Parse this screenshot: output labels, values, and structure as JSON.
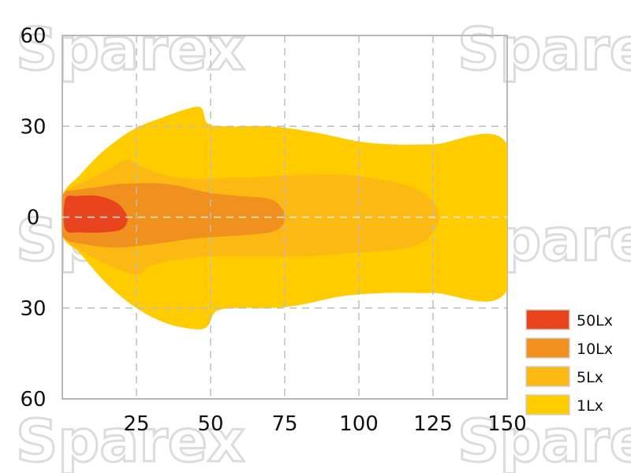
{
  "watermark": "Sparex",
  "chart_data": {
    "type": "area",
    "title": "",
    "xlabel": "",
    "ylabel": "",
    "xlim": [
      0,
      150
    ],
    "ylim": [
      -60,
      60
    ],
    "x_ticks": [
      25,
      50,
      75,
      100,
      125,
      150
    ],
    "y_ticks": [
      {
        "value": 60,
        "label": "60"
      },
      {
        "value": 30,
        "label": "30"
      },
      {
        "value": 0,
        "label": "0"
      },
      {
        "value": -30,
        "label": "30"
      },
      {
        "value": -60,
        "label": "60"
      }
    ],
    "grid": true,
    "legend_position": "bottom-right",
    "series": [
      {
        "name": "1Lx",
        "color": "#ffcc00",
        "points": [
          [
            0,
            7
          ],
          [
            6,
            14
          ],
          [
            14,
            22
          ],
          [
            24,
            29
          ],
          [
            34,
            33
          ],
          [
            43,
            36
          ],
          [
            47,
            36
          ],
          [
            49,
            31
          ],
          [
            55,
            30
          ],
          [
            70,
            30
          ],
          [
            85,
            28
          ],
          [
            100,
            25
          ],
          [
            112,
            24
          ],
          [
            125,
            24
          ],
          [
            150,
            24
          ],
          [
            150,
            -24
          ],
          [
            125,
            -25
          ],
          [
            110,
            -25
          ],
          [
            95,
            -26
          ],
          [
            80,
            -29
          ],
          [
            70,
            -30
          ],
          [
            60,
            -30
          ],
          [
            52,
            -31
          ],
          [
            49,
            -36
          ],
          [
            45,
            -37
          ],
          [
            35,
            -35
          ],
          [
            25,
            -30
          ],
          [
            15,
            -22
          ],
          [
            6,
            -12
          ],
          [
            0,
            -6
          ]
        ]
      },
      {
        "name": "5Lx",
        "color": "#fdb913",
        "points": [
          [
            0,
            7
          ],
          [
            8,
            12
          ],
          [
            16,
            16
          ],
          [
            22,
            19
          ],
          [
            28,
            16
          ],
          [
            40,
            13
          ],
          [
            60,
            13
          ],
          [
            80,
            14
          ],
          [
            95,
            14
          ],
          [
            110,
            12
          ],
          [
            120,
            9
          ],
          [
            125,
            5
          ],
          [
            127,
            0
          ],
          [
            125,
            -5
          ],
          [
            120,
            -9
          ],
          [
            110,
            -11
          ],
          [
            95,
            -12
          ],
          [
            80,
            -13
          ],
          [
            65,
            -13
          ],
          [
            50,
            -13
          ],
          [
            40,
            -14
          ],
          [
            30,
            -16
          ],
          [
            25,
            -19
          ],
          [
            16,
            -16
          ],
          [
            8,
            -12
          ],
          [
            0,
            -6
          ]
        ]
      },
      {
        "name": "10Lx",
        "color": "#f0901e",
        "points": [
          [
            0,
            7
          ],
          [
            5,
            9
          ],
          [
            12,
            10
          ],
          [
            20,
            11
          ],
          [
            35,
            11
          ],
          [
            50,
            8
          ],
          [
            60,
            7
          ],
          [
            70,
            6
          ],
          [
            74,
            3
          ],
          [
            75,
            0
          ],
          [
            74,
            -3
          ],
          [
            70,
            -5
          ],
          [
            60,
            -6
          ],
          [
            45,
            -7
          ],
          [
            30,
            -9
          ],
          [
            18,
            -10
          ],
          [
            8,
            -9
          ],
          [
            0,
            -6
          ]
        ]
      },
      {
        "name": "50Lx",
        "color": "#e8441e",
        "points": [
          [
            1,
            6
          ],
          [
            5,
            7
          ],
          [
            12,
            7
          ],
          [
            18,
            5
          ],
          [
            21,
            2
          ],
          [
            22,
            -1
          ],
          [
            20,
            -4
          ],
          [
            14,
            -5
          ],
          [
            6,
            -5
          ],
          [
            1,
            -4
          ]
        ]
      }
    ]
  }
}
